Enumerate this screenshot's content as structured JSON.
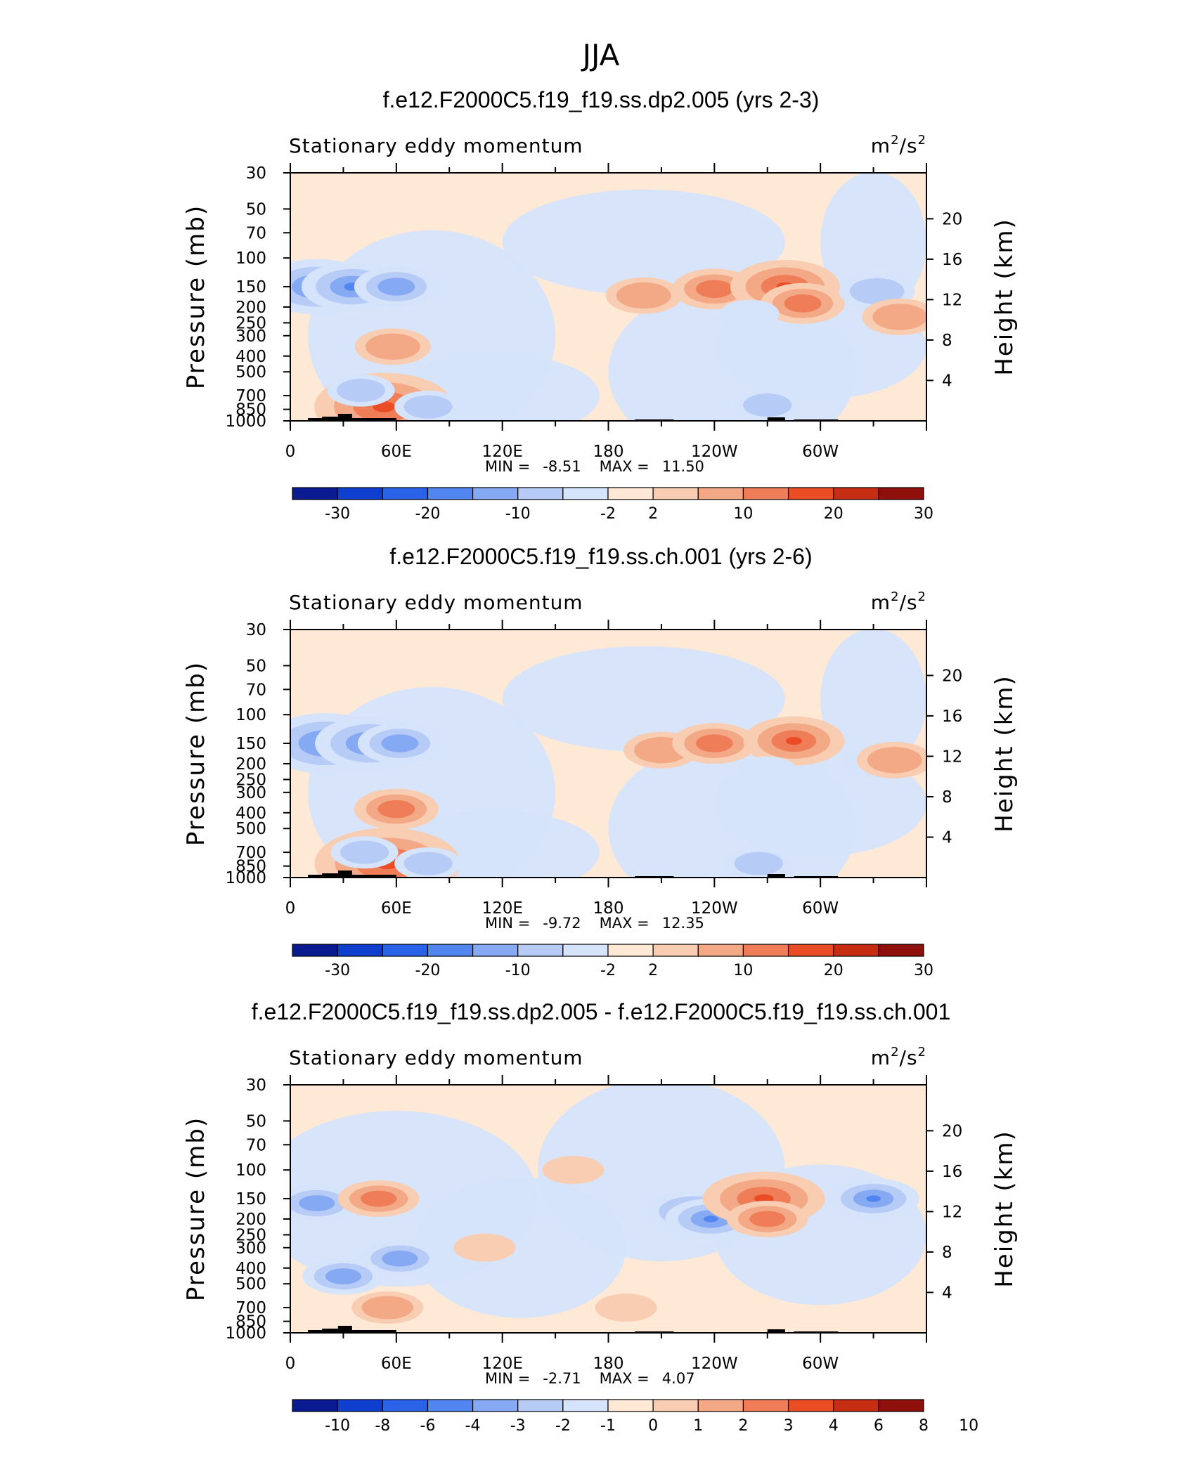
{
  "page_title": "JJA",
  "colors": {
    "neg_palette": [
      "#0a1b8f",
      "#0f3fce",
      "#2b63e8",
      "#5185ef",
      "#86a9f3",
      "#b7cbf7",
      "#d6e4fb"
    ],
    "pos_palette": [
      "#fde9d6",
      "#f8cdb2",
      "#f3a886",
      "#ef7d58",
      "#ea4d25",
      "#c72d13",
      "#8f0f0b"
    ]
  },
  "chart_data": [
    {
      "type": "contour",
      "title": "f.e12.F2000C5.f19_f19.ss.dp2.005 (yrs 2-3)",
      "left_label": "Stationary eddy momentum",
      "units_base": "m",
      "units_exp1": "2",
      "units_sep": "/s",
      "units_exp2": "2",
      "ylabel": "Pressure (mb)",
      "y2label": "Height (km)",
      "xlabels": [
        "0",
        "60E",
        "120E",
        "180",
        "120W",
        "60W"
      ],
      "ylabels": [
        "30",
        "50",
        "70",
        "100",
        "150",
        "200",
        "250",
        "300",
        "400",
        "500",
        "700",
        "850",
        "1000"
      ],
      "y2labels": [
        "20",
        "16",
        "12",
        "8",
        "4"
      ],
      "min_label": "MIN =",
      "min_value": "-8.51",
      "max_label": "MAX =",
      "max_value": "11.50",
      "colorbar_labels": [
        "-30",
        "-20",
        "-10",
        "-2",
        "2",
        "10",
        "20",
        "30"
      ],
      "features": [
        {
          "lon": 15,
          "p": 150,
          "value": -8.5
        },
        {
          "lon": 35,
          "p": 150,
          "value": -7
        },
        {
          "lon": 60,
          "p": 150,
          "value": -5
        },
        {
          "lon": 58,
          "p": 350,
          "value": 4
        },
        {
          "lon": 53,
          "p": 820,
          "value": 11.5
        },
        {
          "lon": 78,
          "p": 820,
          "value": -3
        },
        {
          "lon": 40,
          "p": 650,
          "value": -3
        },
        {
          "lon": 200,
          "p": 170,
          "value": 4
        },
        {
          "lon": 240,
          "p": 155,
          "value": 5
        },
        {
          "lon": 280,
          "p": 150,
          "value": 8
        },
        {
          "lon": 290,
          "p": 190,
          "value": 5
        },
        {
          "lon": 332,
          "p": 160,
          "value": -4
        },
        {
          "lon": 345,
          "p": 230,
          "value": 4
        },
        {
          "lon": 140,
          "p": 100,
          "value": -1
        },
        {
          "lon": 225,
          "p": 60,
          "value": -1
        },
        {
          "lon": 260,
          "p": 220,
          "value": -2
        },
        {
          "lon": 270,
          "p": 800,
          "value": -3
        }
      ]
    },
    {
      "type": "contour",
      "title": "f.e12.F2000C5.f19_f19.ss.ch.001 (yrs 2-6)",
      "left_label": "Stationary eddy momentum",
      "units_base": "m",
      "units_exp1": "2",
      "units_sep": "/s",
      "units_exp2": "2",
      "ylabel": "Pressure (mb)",
      "y2label": "Height (km)",
      "xlabels": [
        "0",
        "60E",
        "120E",
        "180",
        "120W",
        "60W"
      ],
      "ylabels": [
        "30",
        "50",
        "70",
        "100",
        "150",
        "200",
        "250",
        "300",
        "400",
        "500",
        "700",
        "850",
        "1000"
      ],
      "y2labels": [
        "20",
        "16",
        "12",
        "8",
        "4"
      ],
      "min_label": "MIN =",
      "min_value": "-9.72",
      "max_label": "MAX =",
      "max_value": "12.35",
      "colorbar_labels": [
        "-30",
        "-20",
        "-10",
        "-2",
        "2",
        "10",
        "20",
        "30"
      ],
      "features": [
        {
          "lon": 20,
          "p": 150,
          "value": -9.7
        },
        {
          "lon": 45,
          "p": 150,
          "value": -8
        },
        {
          "lon": 62,
          "p": 150,
          "value": -5
        },
        {
          "lon": 60,
          "p": 380,
          "value": 5
        },
        {
          "lon": 55,
          "p": 820,
          "value": 12.3
        },
        {
          "lon": 78,
          "p": 820,
          "value": -3
        },
        {
          "lon": 42,
          "p": 700,
          "value": -3
        },
        {
          "lon": 210,
          "p": 165,
          "value": 4
        },
        {
          "lon": 240,
          "p": 150,
          "value": 5
        },
        {
          "lon": 285,
          "p": 145,
          "value": 7
        },
        {
          "lon": 270,
          "p": 220,
          "value": -2
        },
        {
          "lon": 330,
          "p": 200,
          "value": -2
        },
        {
          "lon": 342,
          "p": 190,
          "value": 4
        },
        {
          "lon": 140,
          "p": 100,
          "value": -1
        },
        {
          "lon": 300,
          "p": 400,
          "value": -1
        },
        {
          "lon": 265,
          "p": 820,
          "value": -3
        }
      ]
    },
    {
      "type": "contour",
      "title": "f.e12.F2000C5.f19_f19.ss.dp2.005 - f.e12.F2000C5.f19_f19.ss.ch.001",
      "left_label": "Stationary eddy momentum",
      "units_base": "m",
      "units_exp1": "2",
      "units_sep": "/s",
      "units_exp2": "2",
      "ylabel": "Pressure (mb)",
      "y2label": "Height (km)",
      "xlabels": [
        "0",
        "60E",
        "120E",
        "180",
        "120W",
        "60W"
      ],
      "ylabels": [
        "30",
        "50",
        "70",
        "100",
        "150",
        "200",
        "250",
        "300",
        "400",
        "500",
        "700",
        "850",
        "1000"
      ],
      "y2labels": [
        "20",
        "16",
        "12",
        "8",
        "4"
      ],
      "min_label": "MIN =",
      "min_value": "-2.71",
      "max_label": "MAX =",
      "max_value": "4.07",
      "colorbar_labels": [
        "-10",
        "-8",
        "-6",
        "-4",
        "-3",
        "-2",
        "-1",
        "0",
        "1",
        "2",
        "3",
        "4",
        "6",
        "8",
        "10"
      ],
      "features": [
        {
          "lon": 15,
          "p": 160,
          "value": -2
        },
        {
          "lon": 50,
          "p": 150,
          "value": 2
        },
        {
          "lon": 62,
          "p": 350,
          "value": -2
        },
        {
          "lon": 30,
          "p": 450,
          "value": -2
        },
        {
          "lon": 55,
          "p": 700,
          "value": 1.5
        },
        {
          "lon": 228,
          "p": 180,
          "value": -2.7
        },
        {
          "lon": 238,
          "p": 200,
          "value": -2.5
        },
        {
          "lon": 268,
          "p": 150,
          "value": 4.07
        },
        {
          "lon": 270,
          "p": 200,
          "value": 2
        },
        {
          "lon": 330,
          "p": 150,
          "value": -2.5
        },
        {
          "lon": 160,
          "p": 100,
          "value": 1
        },
        {
          "lon": 110,
          "p": 300,
          "value": 1
        },
        {
          "lon": 190,
          "p": 700,
          "value": 1
        }
      ]
    }
  ]
}
